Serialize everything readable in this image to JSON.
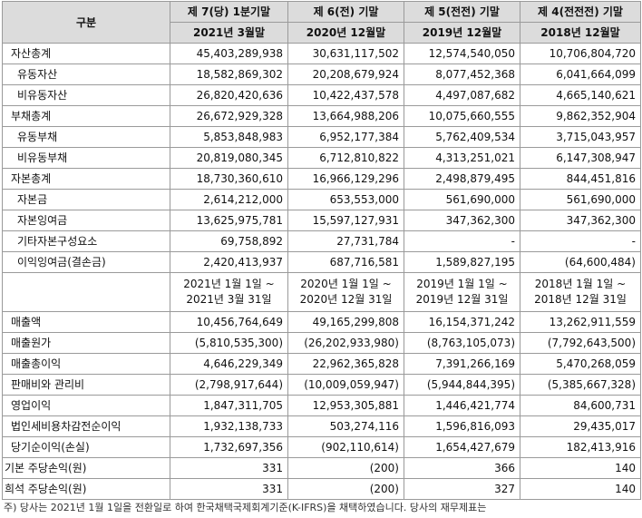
{
  "header": {
    "category": "구분",
    "periods": [
      "제 7(당) 1분기말",
      "제 6(전) 기말",
      "제 5(전전) 기말",
      "제 4(전전전) 기말"
    ],
    "dates": [
      "2021년 3월말",
      "2020년 12월말",
      "2019년 12월말",
      "2018년 12월말"
    ]
  },
  "balance_rows": [
    {
      "label": "자산총계",
      "indent": 1,
      "values": [
        "45,403,289,938",
        "30,631,117,502",
        "12,574,540,050",
        "10,706,804,720"
      ]
    },
    {
      "label": "유동자산",
      "indent": 2,
      "values": [
        "18,582,869,302",
        "20,208,679,924",
        "8,077,452,368",
        "6,041,664,099"
      ]
    },
    {
      "label": "비유동자산",
      "indent": 2,
      "values": [
        "26,820,420,636",
        "10,422,437,578",
        "4,497,087,682",
        "4,665,140,621"
      ]
    },
    {
      "label": "부채총계",
      "indent": 1,
      "values": [
        "26,672,929,328",
        "13,664,988,206",
        "10,075,660,555",
        "9,862,352,904"
      ]
    },
    {
      "label": "유동부채",
      "indent": 2,
      "values": [
        "5,853,848,983",
        "6,952,177,384",
        "5,762,409,534",
        "3,715,043,957"
      ]
    },
    {
      "label": "비유동부채",
      "indent": 2,
      "values": [
        "20,819,080,345",
        "6,712,810,822",
        "4,313,251,021",
        "6,147,308,947"
      ]
    },
    {
      "label": "자본총계",
      "indent": 1,
      "values": [
        "18,730,360,610",
        "16,966,129,296",
        "2,498,879,495",
        "844,451,816"
      ]
    },
    {
      "label": "자본금",
      "indent": 2,
      "values": [
        "2,614,212,000",
        "653,553,000",
        "561,690,000",
        "561,690,000"
      ]
    },
    {
      "label": "자본잉여금",
      "indent": 2,
      "values": [
        "13,625,975,781",
        "15,597,127,931",
        "347,362,300",
        "347,362,300"
      ]
    },
    {
      "label": "기타자본구성요소",
      "indent": 2,
      "values": [
        "69,758,892",
        "27,731,784",
        "-",
        "-"
      ]
    },
    {
      "label": "이익잉여금(결손금)",
      "indent": 2,
      "values": [
        "2,420,413,937",
        "687,716,581",
        "1,589,827,195",
        "(64,600,484)"
      ]
    }
  ],
  "period_ranges": [
    [
      "2021년 1월 1일 ~",
      "2021년 3월 31일"
    ],
    [
      "2020년 1월 1일 ~",
      "2020년 12월 31일"
    ],
    [
      "2019년 1월 1일 ~",
      "2019년 12월 31일"
    ],
    [
      "2018년 1월 1일 ~",
      "2018년 12월 31일"
    ]
  ],
  "income_rows": [
    {
      "label": "매출액",
      "indent": 1,
      "values": [
        "10,456,764,649",
        "49,165,299,808",
        "16,154,371,242",
        "13,262,911,559"
      ]
    },
    {
      "label": "매출원가",
      "indent": 1,
      "values": [
        "(5,810,535,300)",
        "(26,202,933,980)",
        "(8,763,105,073)",
        "(7,792,643,500)"
      ]
    },
    {
      "label": "매출총이익",
      "indent": 1,
      "values": [
        "4,646,229,349",
        "22,962,365,828",
        "7,391,266,169",
        "5,470,268,059"
      ]
    },
    {
      "label": "판매비와 관리비",
      "indent": 1,
      "values": [
        "(2,798,917,644)",
        "(10,009,059,947)",
        "(5,944,844,395)",
        "(5,385,667,328)"
      ]
    },
    {
      "label": "영업이익",
      "indent": 1,
      "values": [
        "1,847,311,705",
        "12,953,305,881",
        "1,446,421,774",
        "84,600,731"
      ]
    },
    {
      "label": "법인세비용차감전순이익",
      "indent": 1,
      "values": [
        "1,932,138,733",
        "503,274,116",
        "1,596,816,093",
        "29,435,017"
      ]
    },
    {
      "label": "당기순이익(손실)",
      "indent": 1,
      "values": [
        "1,732,697,356",
        "(902,110,614)",
        "1,654,427,679",
        "182,413,916"
      ]
    },
    {
      "label": "기본 주당손익(원)",
      "indent": 0,
      "values": [
        "331",
        "(200)",
        "366",
        "140"
      ]
    },
    {
      "label": "희석 주당손익(원)",
      "indent": 0,
      "values": [
        "331",
        "(200)",
        "327",
        "140"
      ]
    }
  ],
  "footnote": "주) 당사는 2021년 1월 1일을 전환일로 하여 한국채택국제회계기준(K-IFRS)을 채택하였습니다. 당사의 재무제표는"
}
